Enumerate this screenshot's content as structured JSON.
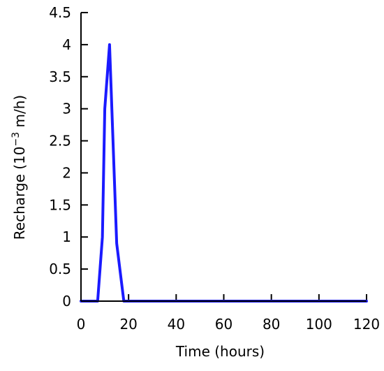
{
  "chart_data": {
    "type": "line",
    "title": "",
    "xlabel": "Time (hours)",
    "ylabel": {
      "prefix": "Recharge (10",
      "exponent": "−3",
      "suffix": " m/h)"
    },
    "xlim": [
      0,
      120
    ],
    "ylim": [
      0,
      4.5
    ],
    "x_ticks": [
      "0",
      "20",
      "40",
      "60",
      "80",
      "100",
      "120"
    ],
    "y_ticks": [
      "0",
      "0.5",
      "1",
      "1.5",
      "2",
      "2.5",
      "3",
      "3.5",
      "4",
      "4.5"
    ],
    "grid": false,
    "legend": "none",
    "series": [
      {
        "color": "#1a1aff",
        "x": [
          0,
          7,
          9,
          10,
          12,
          15,
          18,
          120
        ],
        "y": [
          0,
          0,
          1,
          3,
          4,
          0.9,
          0,
          0
        ]
      }
    ]
  }
}
